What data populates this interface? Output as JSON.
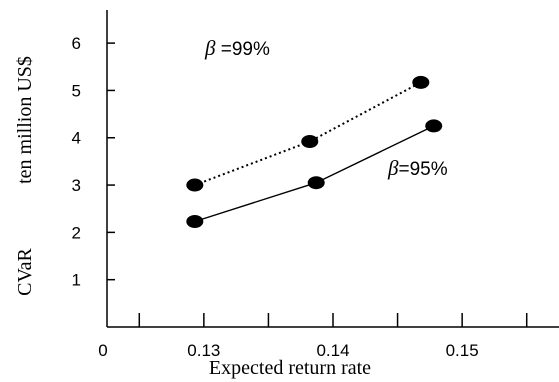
{
  "chart_data": {
    "type": "line",
    "xlabel": "Expected return rate",
    "ylabel": "CVaR",
    "ylabel_unit": "ten million US$",
    "x_ticks": [
      "0",
      "0.13",
      "0.14",
      "0.15"
    ],
    "y_ticks": [
      "1",
      "2",
      "3",
      "4",
      "5",
      "6"
    ],
    "xlim": [
      0.1225,
      0.1575
    ],
    "ylim": [
      0,
      6.7
    ],
    "grid": false,
    "series": [
      {
        "name": "β =99%",
        "name_symbol": "β",
        "name_text": " =99%",
        "line_style": "dotted",
        "color": "#000000",
        "x": [
          0.1293,
          0.1382,
          0.1468
        ],
        "y": [
          3.0,
          3.92,
          5.17
        ]
      },
      {
        "name": "β=95%",
        "name_symbol": "β",
        "name_text": "=95%",
        "line_style": "solid",
        "color": "#000000",
        "x": [
          0.1293,
          0.1387,
          0.1478
        ],
        "y": [
          2.23,
          3.05,
          4.25
        ]
      }
    ]
  }
}
